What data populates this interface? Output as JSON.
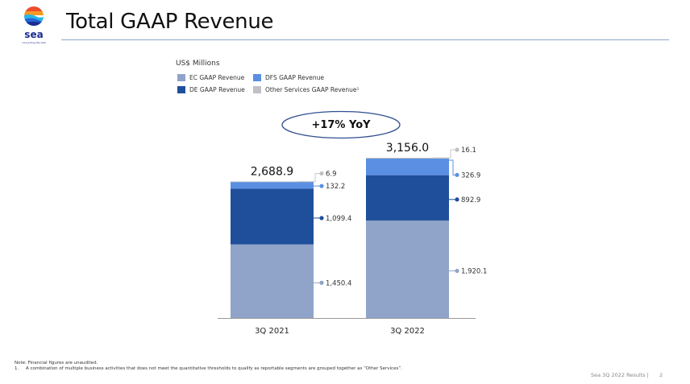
{
  "header": {
    "logo_text": "sea",
    "logo_tagline": "connecting the dots",
    "title": "Total GAAP Revenue"
  },
  "callout": {
    "text": "+17% YoY"
  },
  "footnotes": {
    "note": "Note: Financial figures are unaudited.",
    "item_number": "1.",
    "item_text": "A combination of multiple business activities that does not meet the quantitative thresholds to qualify as reportable segments are grouped together as “Other Services”."
  },
  "footer": {
    "deck": "Sea 3Q 2022 Results |",
    "page": "2"
  },
  "chart_data": {
    "type": "bar",
    "stacked": true,
    "units_label": "US$ Millions",
    "categories": [
      "3Q 2021",
      "3Q 2022"
    ],
    "series": [
      {
        "name": "EC GAAP Revenue",
        "legend_label": "EC GAAP Revenue",
        "color": "#8fa4c8",
        "values": [
          1450.4,
          1920.1
        ],
        "labels": [
          "1,450.4",
          "1,920.1"
        ]
      },
      {
        "name": "DE GAAP Revenue",
        "legend_label": "DE GAAP Revenue",
        "color": "#1f4f9b",
        "values": [
          1099.4,
          892.9
        ],
        "labels": [
          "1,099.4",
          "892.9"
        ]
      },
      {
        "name": "DFS GAAP Revenue",
        "legend_label": "DFS GAAP Revenue",
        "color": "#5b8fe3",
        "values": [
          132.2,
          326.9
        ],
        "labels": [
          "132.2",
          "326.9"
        ]
      },
      {
        "name": "Other Services GAAP Revenue",
        "legend_label": "Other Services GAAP Revenue¹",
        "color": "#bfc1c4",
        "values": [
          6.9,
          16.1
        ],
        "labels": [
          "6.9",
          "16.1"
        ]
      }
    ],
    "totals": [
      2688.9,
      3156.0
    ],
    "total_labels": [
      "2,688.9",
      "3,156.0"
    ],
    "annotation": "+17% YoY",
    "ylim": [
      0,
      3156.0
    ],
    "grid": false,
    "legend_position": "top-left"
  }
}
